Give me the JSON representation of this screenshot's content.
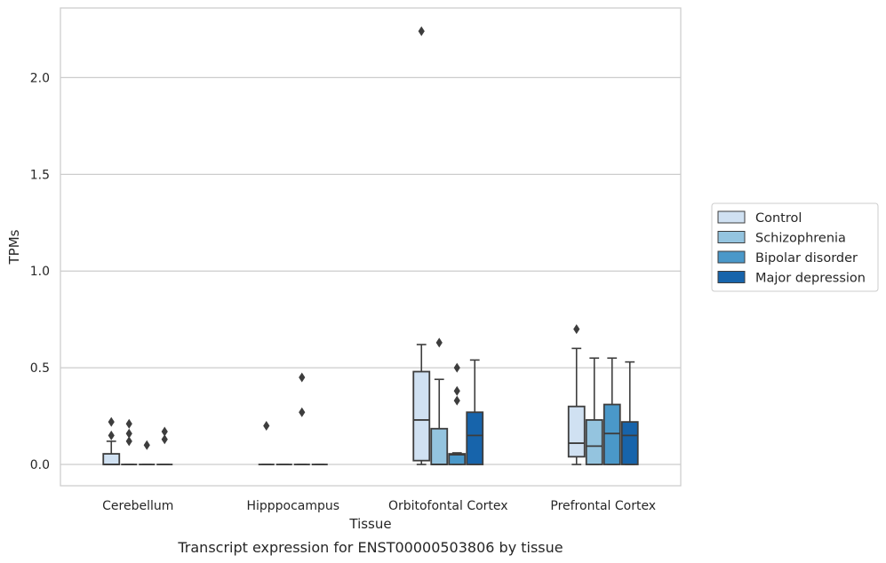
{
  "chart_data": {
    "type": "box",
    "title": "",
    "caption": "Transcript expression for ENST00000503806 by tissue",
    "xlabel": "Tissue",
    "ylabel": "TPMs",
    "ylim": [
      -0.11,
      2.36
    ],
    "yticks": [
      0.0,
      0.5,
      1.0,
      1.5,
      2.0
    ],
    "ytick_labels": [
      "0.0",
      "0.5",
      "1.0",
      "1.5",
      "2.0"
    ],
    "grid": "horizontal",
    "legend_position": "right",
    "categories": [
      "Cerebellum",
      "Hipppocampus",
      "Orbitofontal Cortex",
      "Prefrontal Cortex"
    ],
    "series": [
      {
        "name": "Control",
        "color": "#d0e1f2",
        "boxes": [
          {
            "q1": 0.0,
            "median": 0.0,
            "q3": 0.055,
            "whislo": 0.0,
            "whishi": 0.12,
            "fliers": [
              0.15,
              0.22
            ]
          },
          {
            "q1": 0.0,
            "median": 0.0,
            "q3": 0.0,
            "whislo": 0.0,
            "whishi": 0.0,
            "fliers": [
              0.2
            ]
          },
          {
            "q1": 0.02,
            "median": 0.23,
            "q3": 0.48,
            "whislo": 0.0,
            "whishi": 0.62,
            "fliers": [
              2.24
            ]
          },
          {
            "q1": 0.04,
            "median": 0.11,
            "q3": 0.3,
            "whislo": 0.0,
            "whishi": 0.6,
            "fliers": [
              0.7
            ]
          }
        ]
      },
      {
        "name": "Schizophrenia",
        "color": "#94c4df",
        "boxes": [
          {
            "q1": 0.0,
            "median": 0.0,
            "q3": 0.0,
            "whislo": 0.0,
            "whishi": 0.0,
            "fliers": [
              0.12,
              0.16,
              0.21
            ]
          },
          {
            "q1": 0.0,
            "median": 0.0,
            "q3": 0.0,
            "whislo": 0.0,
            "whishi": 0.0,
            "fliers": []
          },
          {
            "q1": 0.0,
            "median": 0.0,
            "q3": 0.185,
            "whislo": 0.0,
            "whishi": 0.44,
            "fliers": [
              0.63
            ]
          },
          {
            "q1": 0.0,
            "median": 0.095,
            "q3": 0.23,
            "whislo": 0.0,
            "whishi": 0.55,
            "fliers": []
          }
        ]
      },
      {
        "name": "Bipolar disorder",
        "color": "#4a98c9",
        "boxes": [
          {
            "q1": 0.0,
            "median": 0.0,
            "q3": 0.0,
            "whislo": 0.0,
            "whishi": 0.0,
            "fliers": [
              0.1
            ]
          },
          {
            "q1": 0.0,
            "median": 0.0,
            "q3": 0.0,
            "whislo": 0.0,
            "whishi": 0.0,
            "fliers": [
              0.27,
              0.45
            ]
          },
          {
            "q1": 0.0,
            "median": 0.05,
            "q3": 0.055,
            "whislo": 0.0,
            "whishi": 0.06,
            "fliers": [
              0.33,
              0.38,
              0.5
            ]
          },
          {
            "q1": 0.0,
            "median": 0.16,
            "q3": 0.31,
            "whislo": 0.0,
            "whishi": 0.55,
            "fliers": []
          }
        ]
      },
      {
        "name": "Major depression",
        "color": "#1764ab",
        "boxes": [
          {
            "q1": 0.0,
            "median": 0.0,
            "q3": 0.0,
            "whislo": 0.0,
            "whishi": 0.0,
            "fliers": [
              0.13,
              0.17
            ]
          },
          {
            "q1": 0.0,
            "median": 0.0,
            "q3": 0.0,
            "whislo": 0.0,
            "whishi": 0.0,
            "fliers": []
          },
          {
            "q1": 0.0,
            "median": 0.15,
            "q3": 0.27,
            "whislo": 0.0,
            "whishi": 0.54,
            "fliers": []
          },
          {
            "q1": 0.0,
            "median": 0.15,
            "q3": 0.22,
            "whislo": 0.0,
            "whishi": 0.53,
            "fliers": []
          }
        ]
      }
    ],
    "style": {
      "grid_color": "#cccccc",
      "spine_color": "#cccccc",
      "edge_color": "#3d3d3d",
      "text_color": "#262626"
    }
  }
}
